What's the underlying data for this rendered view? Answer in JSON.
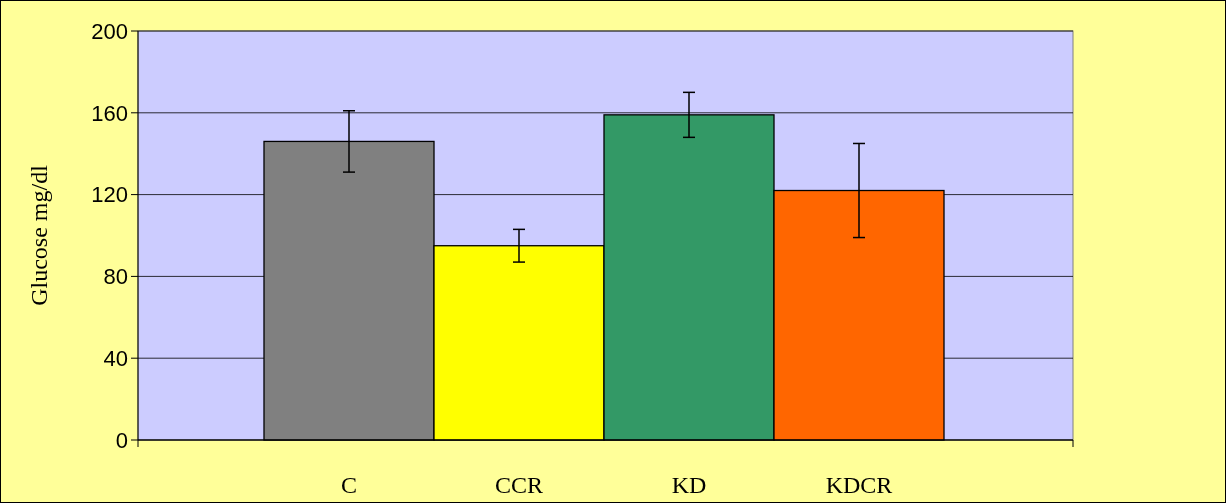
{
  "chart_data": {
    "type": "bar",
    "ylabel": "Glucose mg/dl",
    "categories": [
      "C",
      "CCR",
      "KD",
      "KDCR"
    ],
    "values": [
      146,
      95,
      159,
      122
    ],
    "colors": [
      "#808080",
      "#ffff00",
      "#339966",
      "#ff6600"
    ],
    "errors": [
      15,
      8,
      11,
      23
    ],
    "ylim": [
      0,
      200
    ],
    "yticks": [
      0,
      40,
      80,
      120,
      160,
      200
    ],
    "grid": "y"
  }
}
